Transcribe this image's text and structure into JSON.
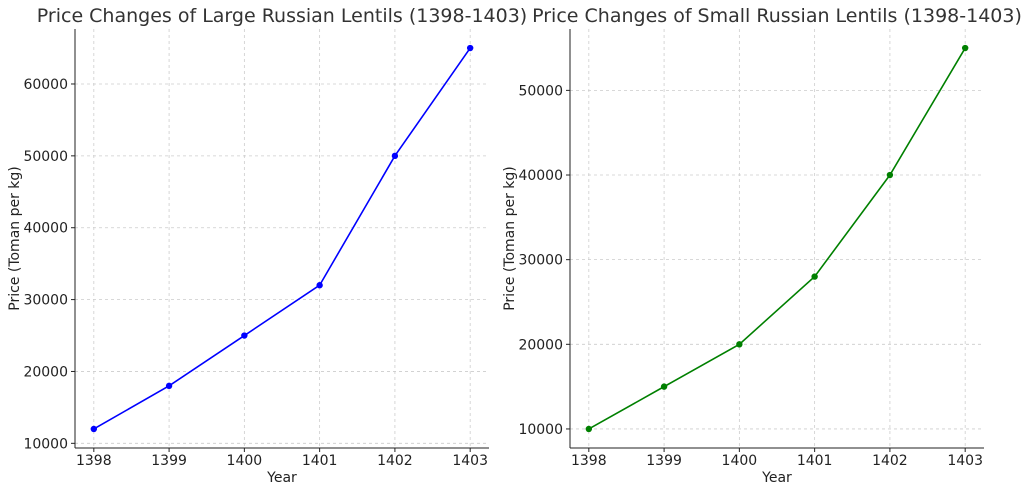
{
  "chart_data": [
    {
      "type": "line",
      "title": "Price Changes of Large Russian Lentils (1398-1403)",
      "xlabel": "Year",
      "ylabel": "Price (Toman per kg)",
      "x": [
        1398,
        1399,
        1400,
        1401,
        1402,
        1403
      ],
      "series": [
        {
          "values": [
            12000,
            18000,
            25000,
            32000,
            50000,
            65000
          ],
          "color": "#0000ff"
        }
      ],
      "xlim": [
        1397.75,
        1403.25
      ],
      "ylim": [
        9350,
        67650
      ],
      "yticks": [
        10000,
        20000,
        30000,
        40000,
        50000,
        60000
      ],
      "grid": true
    },
    {
      "type": "line",
      "title": "Price Changes of Small Russian Lentils (1398-1403)",
      "xlabel": "Year",
      "ylabel": "Price (Toman per kg)",
      "x": [
        1398,
        1399,
        1400,
        1401,
        1402,
        1403
      ],
      "series": [
        {
          "values": [
            10000,
            15000,
            20000,
            28000,
            40000,
            55000
          ],
          "color": "#008000"
        }
      ],
      "xlim": [
        1397.75,
        1403.25
      ],
      "ylim": [
        7750,
        57250
      ],
      "yticks": [
        10000,
        20000,
        30000,
        40000,
        50000
      ],
      "grid": true
    }
  ]
}
